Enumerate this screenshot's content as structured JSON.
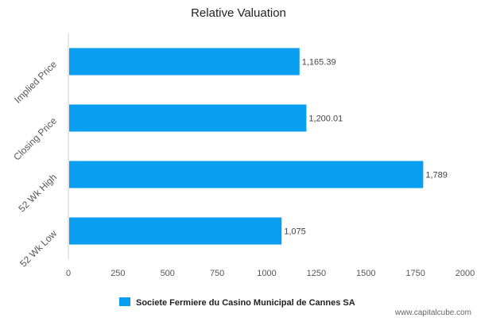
{
  "chart_data": {
    "type": "bar",
    "orientation": "horizontal",
    "title": "Relative Valuation",
    "categories": [
      "Implied Price",
      "Closing Price",
      "52 Wk High",
      "52 Wk Low"
    ],
    "series": [
      {
        "name": "Societe Fermiere du Casino Municipal de Cannes SA",
        "values": [
          1165.39,
          1200.01,
          1789,
          1075
        ],
        "labels": [
          "1,165.39",
          "1,200.01",
          "1,789",
          "1,075"
        ],
        "color": "#0a9ef0"
      }
    ],
    "xlim": [
      0,
      2000
    ],
    "xticks": [
      "0",
      "250",
      "500",
      "750",
      "1000",
      "1250",
      "1500",
      "1750",
      "2000"
    ],
    "grid": false,
    "legend_position": "bottom"
  },
  "watermark": "www.capitalcube.com"
}
